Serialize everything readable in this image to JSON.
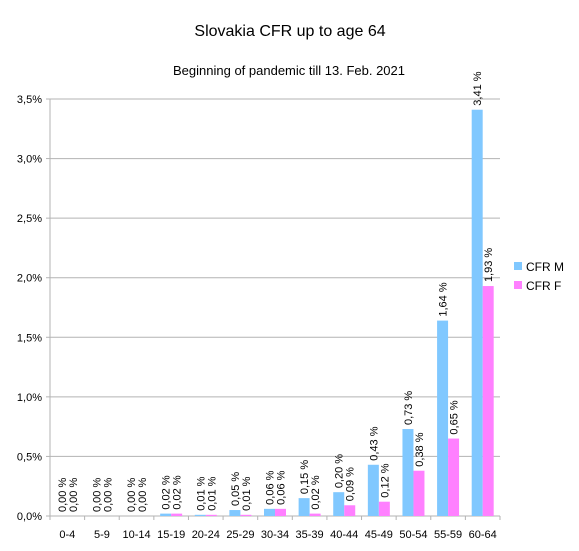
{
  "chart_data": {
    "type": "bar",
    "title": "Slovakia CFR up to age 64",
    "subtitle": "Beginning of pandemic till 13. Feb. 2021",
    "xlabel": "",
    "ylabel": "",
    "categories": [
      "0-4",
      "5-9",
      "10-14",
      "15-19",
      "20-24",
      "25-29",
      "30-34",
      "35-39",
      "40-44",
      "45-49",
      "50-54",
      "55-59",
      "60-64"
    ],
    "series": [
      {
        "name": "CFR M",
        "color": "#80c8ff",
        "values": [
          0.0,
          0.0,
          0.0,
          0.02,
          0.01,
          0.05,
          0.06,
          0.15,
          0.2,
          0.43,
          0.73,
          1.64,
          3.41
        ],
        "labels": [
          "0,00 %",
          "0,00 %",
          "0,00 %",
          "0,02 %",
          "0,01 %",
          "0,05 %",
          "0,06 %",
          "0,15 %",
          "0,20 %",
          "0,43 %",
          "0,73 %",
          "1,64 %",
          "3,41 %"
        ]
      },
      {
        "name": "CFR F",
        "color": "#ff80ff",
        "values": [
          0.0,
          0.0,
          0.0,
          0.02,
          0.01,
          0.01,
          0.06,
          0.02,
          0.09,
          0.12,
          0.38,
          0.65,
          1.93
        ],
        "labels": [
          "0,00 %",
          "0,00 %",
          "0,00 %",
          "0,02 %",
          "0,01 %",
          "0,01 %",
          "0,06 %",
          "0,02 %",
          "0,09 %",
          "0,12 %",
          "0,38 %",
          "0,65 %",
          "1,93 %"
        ]
      }
    ],
    "ylim": [
      0,
      3.5
    ],
    "yticks": [
      0,
      0.5,
      1.0,
      1.5,
      2.0,
      2.5,
      3.0,
      3.5
    ],
    "ytick_labels": [
      "0,0%",
      "0,5%",
      "1,0%",
      "1,5%",
      "2,0%",
      "2,5%",
      "3,0%",
      "3,5%"
    ],
    "grid": true,
    "legend_position": "right"
  }
}
